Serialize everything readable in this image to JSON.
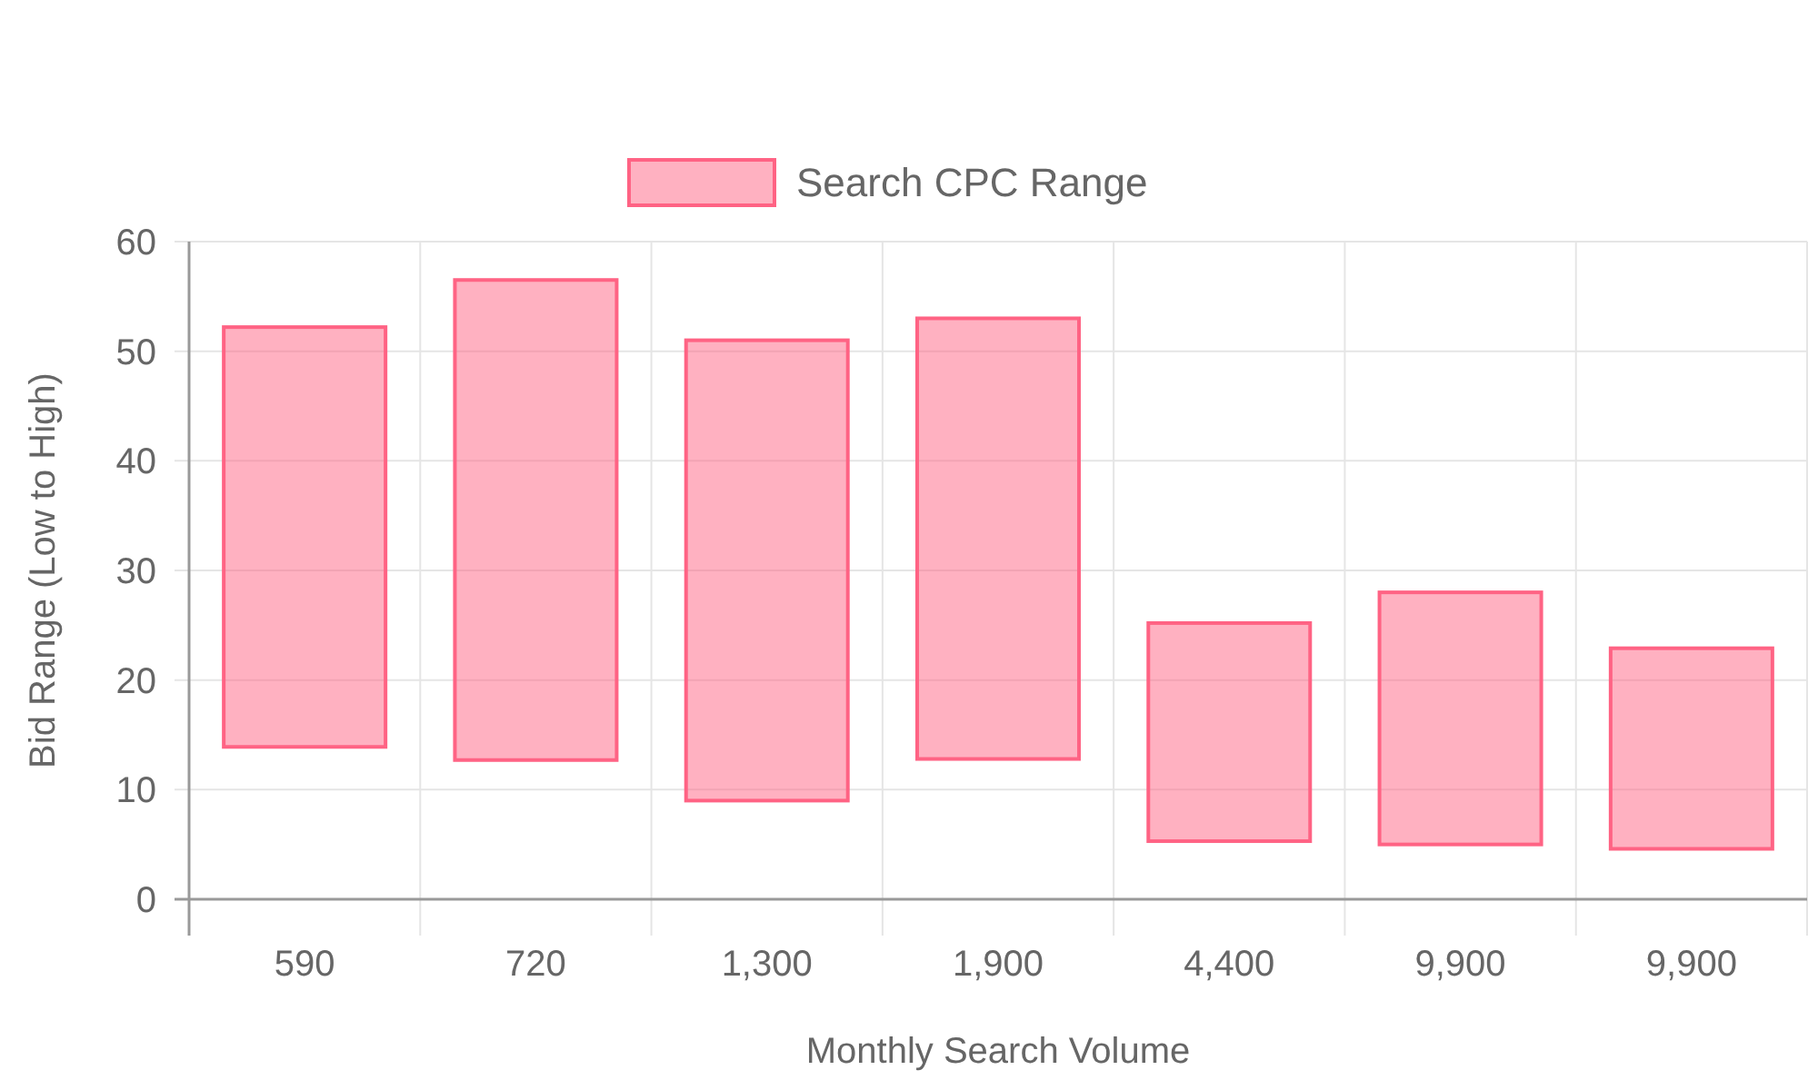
{
  "chart_data": {
    "type": "bar",
    "xlabel": "Monthly Search Volume",
    "ylabel": "Bid Range (Low to High)",
    "categories": [
      "590",
      "720",
      "1,300",
      "1,900",
      "4,400",
      "9,900",
      "9,900"
    ],
    "series": [
      {
        "name": "Search CPC Range",
        "color": "#ff6384",
        "base": [
          13.9,
          12.7,
          9.0,
          12.8,
          5.3,
          5.0,
          4.6
        ],
        "values": [
          38.3,
          43.8,
          42.0,
          40.2,
          19.9,
          23.0,
          18.3
        ]
      }
    ],
    "ylim": [
      0,
      60
    ],
    "yticks": [
      0,
      10,
      20,
      30,
      40,
      50,
      60
    ],
    "grid": true,
    "legend": "top"
  }
}
